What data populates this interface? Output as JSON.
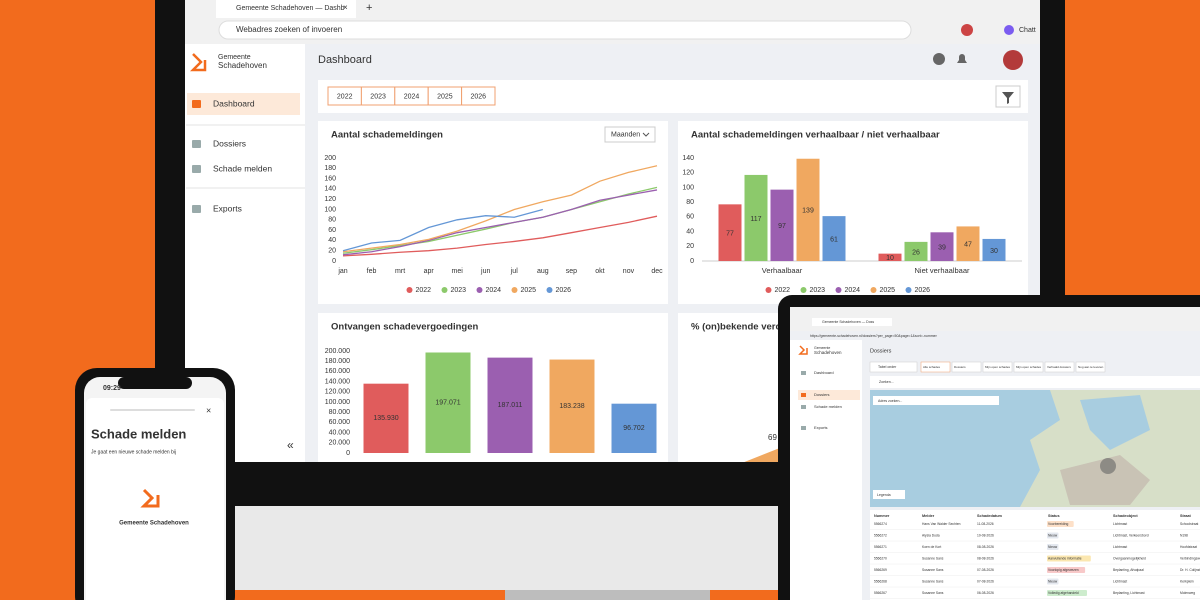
{
  "browser": {
    "tab_title": "Gemeente Schadehoven — Dashb",
    "address_placeholder": "Webadres zoeken of invoeren",
    "profile_label": "Chatt"
  },
  "app": {
    "org_small": "Gemeente",
    "org_name": "Schadehoven",
    "nav": [
      "Dashboard",
      "Dossiers",
      "Schade melden",
      "Exports"
    ],
    "page_title": "Dashboard",
    "year_filters": [
      "2022",
      "2023",
      "2024",
      "2025",
      "2026"
    ]
  },
  "chart_data": [
    {
      "type": "line",
      "title": "Aantal schademeldingen",
      "dropdown": "Maanden",
      "categories": [
        "jan",
        "feb",
        "mrt",
        "apr",
        "mei",
        "jun",
        "jul",
        "aug",
        "sep",
        "okt",
        "nov",
        "dec"
      ],
      "ylim": [
        0,
        200
      ],
      "yticks": [
        0,
        20,
        40,
        60,
        80,
        100,
        120,
        140,
        160,
        180,
        200
      ],
      "series": [
        {
          "name": "2022",
          "color": "#e05c5c",
          "values": [
            10,
            13,
            17,
            20,
            25,
            32,
            38,
            45,
            55,
            65,
            75,
            87
          ]
        },
        {
          "name": "2023",
          "color": "#8cc96b",
          "values": [
            15,
            22,
            30,
            38,
            50,
            62,
            75,
            85,
            100,
            115,
            130,
            143
          ]
        },
        {
          "name": "2024",
          "color": "#9b5fb0",
          "values": [
            12,
            18,
            28,
            40,
            55,
            65,
            75,
            85,
            100,
            118,
            128,
            138
          ]
        },
        {
          "name": "2025",
          "color": "#f0a860",
          "values": [
            18,
            25,
            32,
            42,
            58,
            78,
            100,
            115,
            128,
            155,
            172,
            185
          ]
        },
        {
          "name": "2026",
          "color": "#6497d6",
          "values": [
            20,
            35,
            40,
            65,
            80,
            88,
            85,
            100,
            null,
            null,
            null,
            null
          ]
        }
      ]
    },
    {
      "type": "grouped-bar",
      "title": "Aantal schademeldingen verhaalbaar / niet verhaalbaar",
      "categories": [
        "Verhaalbaar",
        "Niet verhaalbaar"
      ],
      "ylim": [
        0,
        140
      ],
      "yticks": [
        0,
        20,
        40,
        60,
        80,
        100,
        120,
        140
      ],
      "series": [
        {
          "name": "2022",
          "color": "#e05c5c",
          "values": [
            77,
            10
          ]
        },
        {
          "name": "2023",
          "color": "#8cc96b",
          "values": [
            117,
            26
          ]
        },
        {
          "name": "2024",
          "color": "#9b5fb0",
          "values": [
            97,
            39
          ]
        },
        {
          "name": "2025",
          "color": "#f0a860",
          "values": [
            139,
            47
          ]
        },
        {
          "name": "2026",
          "color": "#6497d6",
          "values": [
            61,
            30
          ]
        }
      ]
    },
    {
      "type": "bar",
      "title": "Ontvangen schadevergoedingen",
      "categories": [
        null,
        null,
        null,
        null,
        null
      ],
      "values": [
        135930,
        197071,
        187011,
        183238,
        96702
      ],
      "value_labels": [
        "135.930",
        "197.071",
        "187.011",
        "183.238",
        "96.702"
      ],
      "colors": [
        "#e05c5c",
        "#8cc96b",
        "#9b5fb0",
        "#f0a860",
        "#6497d6"
      ],
      "ylim": [
        0,
        200000
      ],
      "yticks": [
        0,
        {
          "value": 20000,
          "label": "20.000"
        },
        {
          "value": 40000,
          "label": "40.000"
        },
        {
          "value": 60000,
          "label": "60.000"
        },
        {
          "value": 80000,
          "label": "80.000"
        },
        {
          "value": 100000,
          "label": "100.000"
        },
        {
          "value": 120000,
          "label": "120.000"
        },
        {
          "value": 140000,
          "label": "140.000"
        },
        {
          "value": 160000,
          "label": "160.000"
        },
        {
          "value": 180000,
          "label": "180.000"
        },
        {
          "value": 200000,
          "label": "200.000"
        }
      ]
    },
    {
      "type": "pie",
      "title": "% (on)bekende verc",
      "values": [
        69
      ],
      "colors": [
        "#f0a860"
      ]
    }
  ],
  "phone": {
    "time": "09:29",
    "title": "Schade melden",
    "text": "Je gaat een nieuwe schade melden bij",
    "org": "Gemeente Schadehoven"
  },
  "tablet": {
    "tab_title": "Gemeente Schadehoven — Doss",
    "url": "https://gemeente-schadehoven.nl/dossiers?per_page=50&page=1&sort=-nummer",
    "org_small": "Gemeente",
    "org_name": "Schadehoven",
    "nav": [
      "Dashboard",
      "Dossiers",
      "Schade melden",
      "Exports"
    ],
    "page_title": "Dossiers",
    "table_button": "Tabel onder",
    "tabs": [
      "Alle schades",
      "Dossiers",
      "Mijn open schades",
      "Mijn open schades",
      "Verhaald dossiers",
      "Nog aan te leveren"
    ],
    "search": "Zoeken...",
    "map_search": "Adres zoeken...",
    "legend": "Legenda",
    "columns": [
      "Nummer",
      "Melder",
      "Schadedatum",
      "Status",
      "Schadeobject",
      "Straat"
    ],
    "rows": [
      [
        "5566274",
        "Hans Van Walder Sechten",
        "11-08-2026",
        "Voorbereiding",
        "Lichtmast",
        "Schoolstraat"
      ],
      [
        "5566272",
        "Alysia Duda",
        "10-08-2026",
        "Nieuw",
        "Lichtmast, Verkeersbord",
        "N198"
      ],
      [
        "5566271",
        "Koen de Kort",
        "08-08-2026",
        "Nieuw",
        "Lichtmast",
        "Hoofdstraat"
      ],
      [
        "5566270",
        "Susanne Sans",
        "08-08-2026",
        "Aanvullende informatie",
        "Overgaanmogelijkheid",
        "Verbindingsweg"
      ],
      [
        "5566269",
        "Susanne Sans",
        "07-08-2026",
        "Voorlopig afgewezen",
        "Beplanting, Afvalpaal",
        "Dr. H. Colijnstraat"
      ],
      [
        "5566268",
        "Susanne Sans",
        "07-08-2026",
        "Nieuw",
        "Lichtmast",
        "Kerkplein"
      ],
      [
        "5566267",
        "Susanne Sans",
        "06-08-2026",
        "Volledig afgehandeld",
        "Beplanting, Lichtmast",
        "Molenweg"
      ]
    ]
  }
}
